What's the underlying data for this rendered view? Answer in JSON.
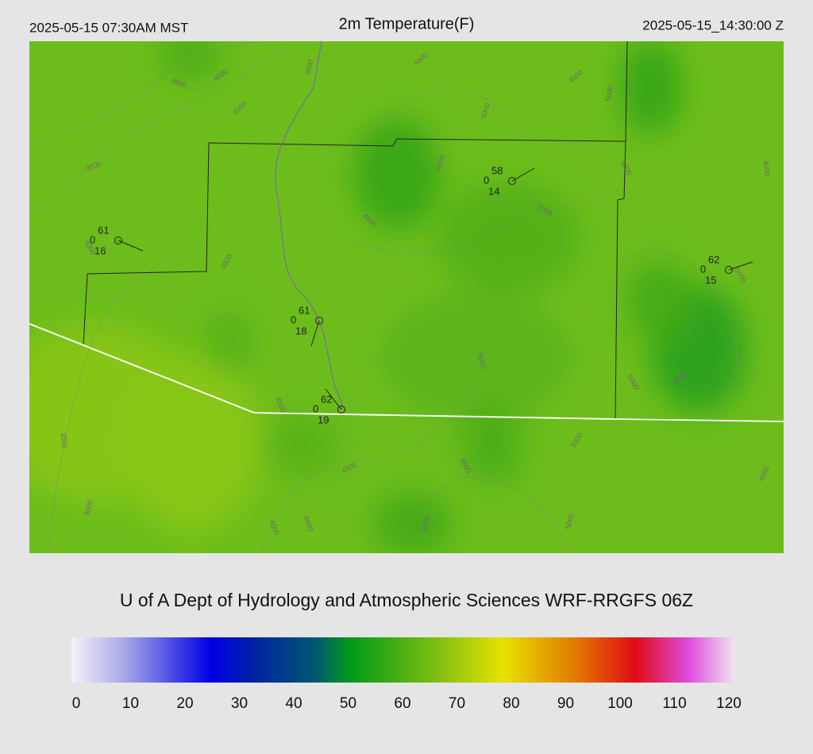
{
  "header": {
    "left": "2025-05-15 07:30AM MST",
    "title": "2m Temperature(F)",
    "right": "2025-05-15_14:30:00 Z"
  },
  "contour_labels": [
    "4000",
    "4000",
    "3000",
    "4000",
    "4500",
    "5000",
    "3500",
    "5000",
    "5000",
    "3500",
    "5000",
    "4000",
    "5000",
    "4500",
    "4500",
    "4000",
    "5000",
    "5000",
    "5000",
    "4500",
    "4500",
    "3500",
    "5000",
    "4500",
    "4500",
    "4500",
    "3000",
    "4000",
    "4500",
    "5000",
    "5000"
  ],
  "stations": [
    {
      "temp": 61,
      "pressure": 0,
      "dewpoint": 16
    },
    {
      "temp": 58,
      "pressure": 0,
      "dewpoint": 14
    },
    {
      "temp": 61,
      "pressure": 0,
      "dewpoint": 18
    },
    {
      "temp": 62,
      "pressure": 0,
      "dewpoint": 19
    },
    {
      "temp": 62,
      "pressure": 0,
      "dewpoint": 15
    }
  ],
  "footer": {
    "credit": "U of A Dept of Hydrology and Atmospheric Sciences WRF-RRGFS 06Z"
  },
  "colorbar": {
    "min": 0,
    "max": 120,
    "ticks": [
      0,
      10,
      20,
      30,
      40,
      50,
      60,
      70,
      80,
      90,
      100,
      110,
      120
    ]
  }
}
